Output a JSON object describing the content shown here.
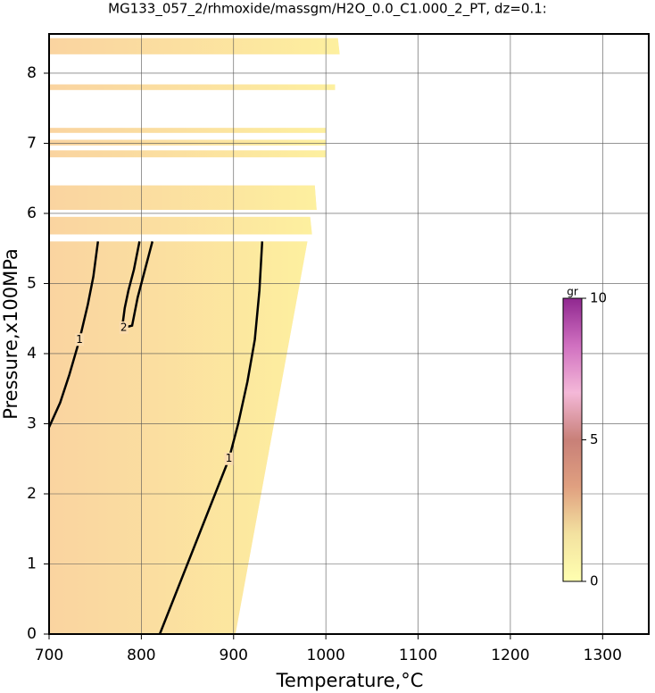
{
  "chart_data": {
    "type": "contour",
    "title": "MG133_057_2/rhmoxide/massgm/H2O_0.0_C1.000_2_PT, dz=0.1:",
    "x_label": "Temperature,°C",
    "y_label": "Pressure,x100MPa",
    "xlim": [
      700,
      1350
    ],
    "ylim": [
      0,
      8.56
    ],
    "xticks": [
      700,
      800,
      900,
      1000,
      1100,
      1200,
      1300
    ],
    "yticks": [
      0,
      1,
      2,
      3,
      4,
      5,
      6,
      7,
      8
    ],
    "grid": true,
    "region_color": "#fbd9a8",
    "regions": [
      {
        "x": [
          700,
          902,
          980,
          700
        ],
        "y": [
          0,
          0,
          5.6,
          5.6
        ]
      },
      {
        "x": [
          700,
          985,
          983,
          700
        ],
        "y": [
          5.7,
          5.7,
          5.95,
          5.95
        ]
      },
      {
        "x": [
          700,
          990,
          988,
          700
        ],
        "y": [
          6.05,
          6.05,
          6.4,
          6.4
        ]
      },
      {
        "x": [
          700,
          1000,
          1000,
          700
        ],
        "y": [
          6.8,
          6.8,
          6.9,
          6.9
        ]
      },
      {
        "x": [
          700,
          1000,
          1000,
          700
        ],
        "y": [
          6.97,
          6.97,
          7.05,
          7.05
        ]
      },
      {
        "x": [
          700,
          1000,
          1000,
          700
        ],
        "y": [
          7.15,
          7.15,
          7.22,
          7.22
        ]
      },
      {
        "x": [
          700,
          1010,
          1010,
          700
        ],
        "y": [
          7.76,
          7.76,
          7.84,
          7.84
        ]
      },
      {
        "x": [
          700,
          1015,
          1013,
          700
        ],
        "y": [
          8.27,
          8.27,
          8.5,
          8.5
        ]
      }
    ],
    "contours": [
      {
        "level": 1,
        "x": [
          700,
          712,
          722,
          733,
          742,
          748,
          753
        ],
        "y": [
          2.95,
          3.3,
          3.7,
          4.2,
          4.7,
          5.1,
          5.6
        ]
      },
      {
        "level": 1,
        "x": [
          820,
          835,
          850,
          865,
          880,
          895,
          905,
          915,
          923,
          928,
          931
        ],
        "y": [
          0,
          0.5,
          1.0,
          1.5,
          2.0,
          2.5,
          3.0,
          3.6,
          4.2,
          4.9,
          5.6
        ]
      },
      {
        "level": 2,
        "x": [
          798,
          792,
          786,
          782,
          780,
          781,
          790,
          796,
          802,
          808,
          812
        ],
        "y": [
          5.6,
          5.2,
          4.9,
          4.65,
          4.45,
          4.37,
          4.4,
          4.8,
          5.1,
          5.4,
          5.6
        ]
      }
    ],
    "colorbar": {
      "label": "gr",
      "clim": [
        0,
        10
      ],
      "ticks": [
        0,
        5,
        10
      ],
      "colors": [
        "#ffffb0",
        "#f3e2a0",
        "#e0a080",
        "#c88078",
        "#f4b8d8",
        "#d070c0",
        "#902890"
      ]
    }
  }
}
